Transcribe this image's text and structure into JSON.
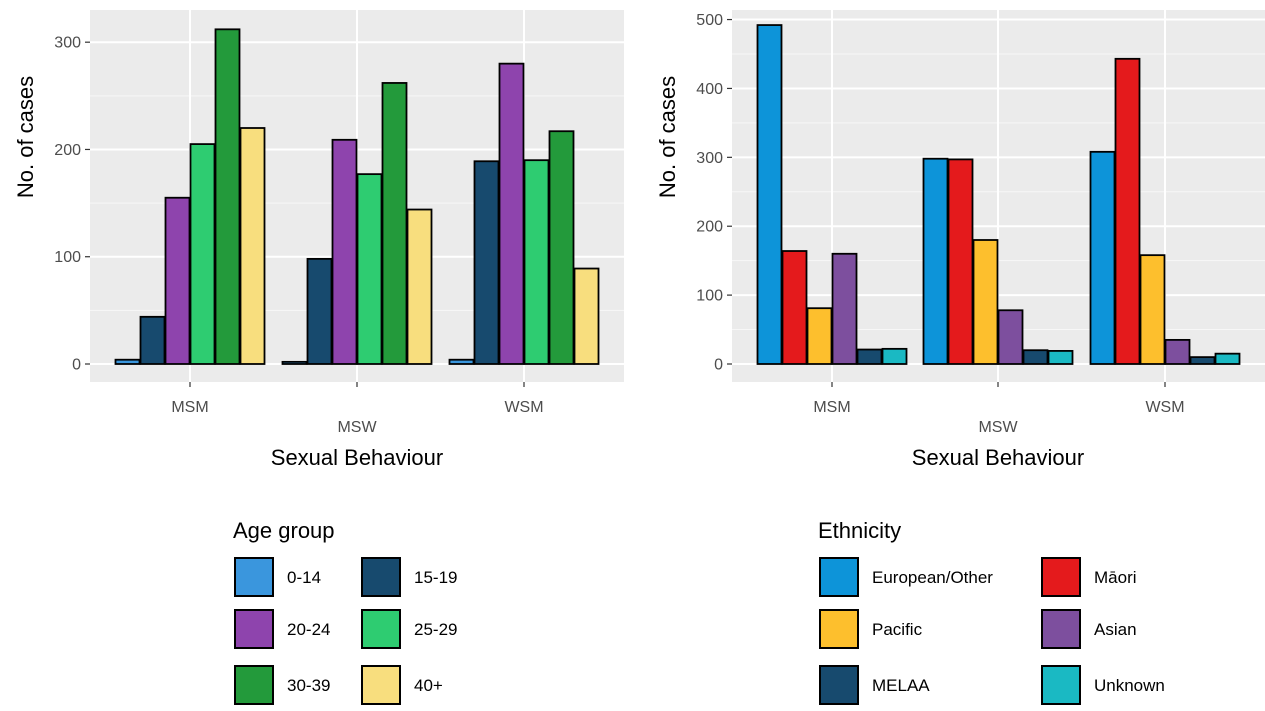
{
  "chart_data": [
    {
      "type": "bar",
      "title": "",
      "xlabel": "Sexual Behaviour",
      "ylabel": "No. of cases",
      "categories": [
        "MSM",
        "MSW",
        "WSM"
      ],
      "ylim": [
        0,
        330
      ],
      "yticks": [
        0,
        100,
        200,
        300
      ],
      "grid": true,
      "legend_position": "bottom",
      "legend_title": "Age group",
      "series": [
        {
          "name": "0-14",
          "color": "#3a96dd",
          "values": [
            4,
            2,
            4
          ]
        },
        {
          "name": "15-19",
          "color": "#174a6e",
          "values": [
            44,
            98,
            189
          ]
        },
        {
          "name": "20-24",
          "color": "#8e44ad",
          "values": [
            155,
            209,
            280
          ]
        },
        {
          "name": "25-29",
          "color": "#2ecc71",
          "values": [
            205,
            177,
            190
          ]
        },
        {
          "name": "30-39",
          "color": "#239a3b",
          "values": [
            312,
            262,
            217
          ]
        },
        {
          "name": "40+",
          "color": "#f8de7e",
          "values": [
            220,
            144,
            89
          ]
        }
      ]
    },
    {
      "type": "bar",
      "title": "",
      "xlabel": "Sexual Behaviour",
      "ylabel": "No. of cases",
      "categories": [
        "MSM",
        "MSW",
        "WSM"
      ],
      "ylim": [
        0,
        515
      ],
      "yticks": [
        0,
        100,
        200,
        300,
        400,
        500
      ],
      "grid": true,
      "legend_position": "bottom",
      "legend_title": "Ethnicity",
      "series": [
        {
          "name": "European/Other",
          "color": "#0d94d9",
          "values": [
            492,
            298,
            308
          ]
        },
        {
          "name": "Māori",
          "color": "#e41a1c",
          "values": [
            164,
            297,
            443
          ]
        },
        {
          "name": "Pacific",
          "color": "#fdbf2d",
          "values": [
            81,
            180,
            158
          ]
        },
        {
          "name": "Asian",
          "color": "#7d4f9e",
          "values": [
            160,
            78,
            35
          ]
        },
        {
          "name": "MELAA",
          "color": "#174a6e",
          "values": [
            21,
            20,
            10
          ]
        },
        {
          "name": "Unknown",
          "color": "#1ab9c3",
          "values": [
            22,
            19,
            15
          ]
        }
      ]
    }
  ]
}
